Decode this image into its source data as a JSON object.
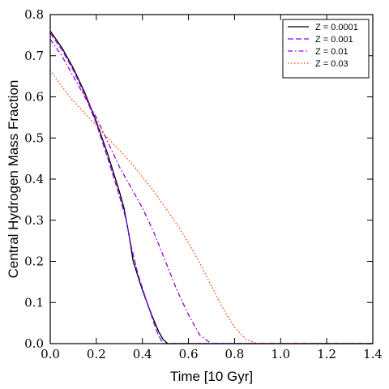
{
  "chart_data": {
    "type": "line",
    "xlabel": "Time [10 Gyr]",
    "ylabel": "Central Hydrogen Mass Fraction",
    "xlim": [
      0.0,
      1.4
    ],
    "ylim": [
      0.0,
      0.8
    ],
    "xticks": [
      "0.0",
      "0.2",
      "0.4",
      "0.6",
      "0.8",
      "1.0",
      "1.2",
      "1.4"
    ],
    "yticks": [
      "0.0",
      "0.1",
      "0.2",
      "0.3",
      "0.4",
      "0.5",
      "0.6",
      "0.7",
      "0.8"
    ],
    "grid": false,
    "legend_position": "top-right",
    "series": [
      {
        "name": "Z = 0.0001",
        "color": "#000000",
        "dash": "solid",
        "points": [
          [
            0.0,
            0.76
          ],
          [
            0.05,
            0.72
          ],
          [
            0.1,
            0.67
          ],
          [
            0.15,
            0.61
          ],
          [
            0.2,
            0.54
          ],
          [
            0.25,
            0.46
          ],
          [
            0.3,
            0.37
          ],
          [
            0.32,
            0.33
          ],
          [
            0.34,
            0.27
          ],
          [
            0.36,
            0.2
          ],
          [
            0.4,
            0.13
          ],
          [
            0.44,
            0.07
          ],
          [
            0.47,
            0.03
          ],
          [
            0.49,
            0.01
          ],
          [
            0.51,
            0.0
          ],
          [
            1.4,
            0.0
          ]
        ]
      },
      {
        "name": "Z = 0.001",
        "color": "#8b00ff",
        "dash": "dashed",
        "points": [
          [
            0.0,
            0.755
          ],
          [
            0.05,
            0.715
          ],
          [
            0.1,
            0.665
          ],
          [
            0.15,
            0.605
          ],
          [
            0.2,
            0.535
          ],
          [
            0.25,
            0.45
          ],
          [
            0.3,
            0.36
          ],
          [
            0.33,
            0.3
          ],
          [
            0.35,
            0.24
          ],
          [
            0.38,
            0.17
          ],
          [
            0.42,
            0.1
          ],
          [
            0.45,
            0.05
          ],
          [
            0.47,
            0.02
          ],
          [
            0.49,
            0.0
          ],
          [
            1.4,
            0.0
          ]
        ]
      },
      {
        "name": "Z = 0.01",
        "color": "#9900cc",
        "dash": "dashdot",
        "points": [
          [
            0.0,
            0.74
          ],
          [
            0.05,
            0.7
          ],
          [
            0.1,
            0.65
          ],
          [
            0.15,
            0.6
          ],
          [
            0.2,
            0.55
          ],
          [
            0.25,
            0.49
          ],
          [
            0.3,
            0.43
          ],
          [
            0.35,
            0.38
          ],
          [
            0.4,
            0.33
          ],
          [
            0.45,
            0.27
          ],
          [
            0.5,
            0.2
          ],
          [
            0.55,
            0.13
          ],
          [
            0.6,
            0.07
          ],
          [
            0.65,
            0.02
          ],
          [
            0.7,
            0.0
          ],
          [
            1.4,
            0.0
          ]
        ]
      },
      {
        "name": "Z = 0.03",
        "color": "#ff4000",
        "dash": "dotted",
        "points": [
          [
            0.0,
            0.665
          ],
          [
            0.05,
            0.625
          ],
          [
            0.1,
            0.59
          ],
          [
            0.15,
            0.56
          ],
          [
            0.2,
            0.53
          ],
          [
            0.25,
            0.5
          ],
          [
            0.3,
            0.47
          ],
          [
            0.35,
            0.44
          ],
          [
            0.4,
            0.405
          ],
          [
            0.45,
            0.37
          ],
          [
            0.5,
            0.33
          ],
          [
            0.55,
            0.29
          ],
          [
            0.6,
            0.245
          ],
          [
            0.65,
            0.195
          ],
          [
            0.7,
            0.14
          ],
          [
            0.75,
            0.085
          ],
          [
            0.8,
            0.04
          ],
          [
            0.85,
            0.01
          ],
          [
            0.9,
            0.0
          ],
          [
            1.4,
            0.0
          ]
        ]
      }
    ]
  }
}
